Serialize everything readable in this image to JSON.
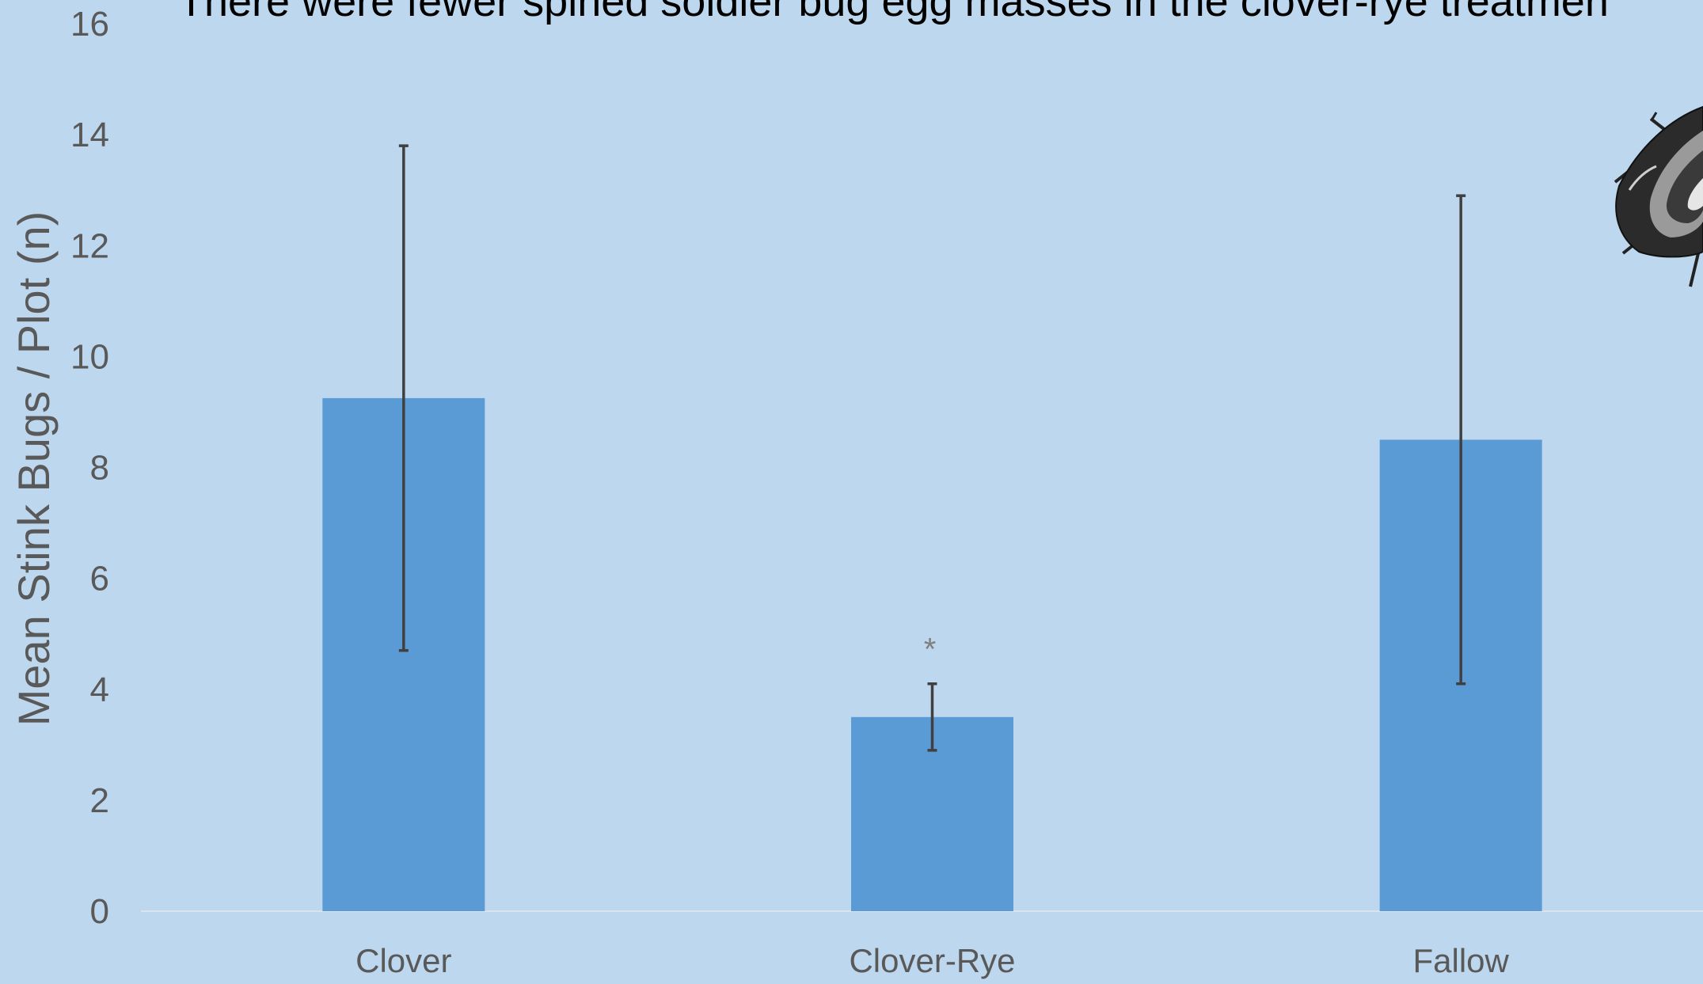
{
  "chart_data": {
    "type": "bar",
    "title": "There were fewer spined soldier bug egg masses in the clover-rye treatmen",
    "xlabel": "",
    "ylabel": "Mean Stink Bugs / Plot (n)",
    "categories": [
      "Clover",
      "Clover-Rye",
      "Fallow"
    ],
    "values": [
      9.25,
      3.5,
      8.5
    ],
    "error_low": [
      4.7,
      2.9,
      4.1
    ],
    "error_high": [
      13.8,
      4.1,
      12.9
    ],
    "ylim": [
      0,
      16
    ],
    "yticks": [
      0,
      2,
      4,
      6,
      8,
      10,
      12,
      14,
      16
    ],
    "grid": false,
    "legend": "none",
    "annotations": [
      {
        "category": "Clover-Rye",
        "text": "*"
      }
    ],
    "colors": {
      "background": "#bdd7ee",
      "bar": "#5b9bd5",
      "error_bar": "#404040",
      "axis_text": "#595959",
      "title": "#000000",
      "baseline": "#d9e4ef"
    },
    "decoration": "beetle-icon"
  }
}
